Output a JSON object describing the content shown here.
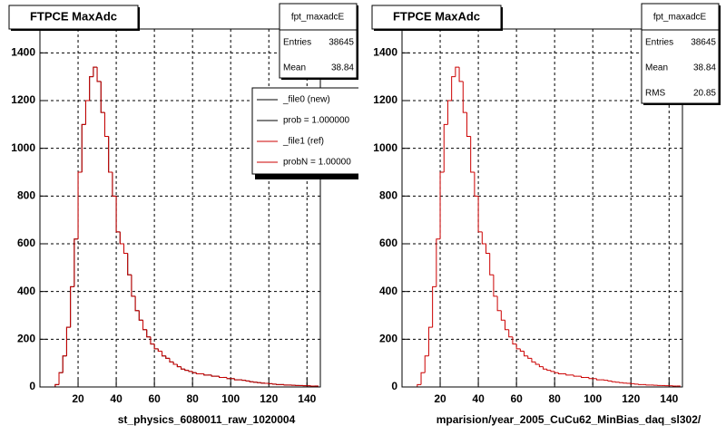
{
  "chart_data": [
    {
      "type": "histogram",
      "title": "FTPCE MaxAdc",
      "xlabel": "st_physics_6080011_raw_1020004",
      "bins": [
        0,
        2,
        4,
        6,
        8,
        10,
        12,
        14,
        16,
        18,
        20,
        22,
        24,
        26,
        28,
        30,
        32,
        34,
        36,
        38,
        40,
        42,
        44,
        46,
        48,
        50,
        52,
        54,
        56,
        58,
        60,
        62,
        64,
        66,
        68,
        70,
        72,
        74,
        76,
        78,
        80,
        82,
        84,
        86,
        88,
        90,
        92,
        94,
        96,
        98,
        100,
        102,
        104,
        106,
        108,
        110,
        112,
        114,
        116,
        118,
        120,
        122,
        124,
        126,
        128,
        130,
        132,
        134,
        136,
        138,
        140,
        142,
        144,
        146
      ],
      "series": [
        {
          "name": "_file0 (new)",
          "color": "#000000",
          "values": [
            0,
            0,
            0,
            0,
            10,
            60,
            130,
            250,
            420,
            620,
            900,
            1100,
            1200,
            1300,
            1340,
            1280,
            1150,
            1050,
            900,
            800,
            650,
            600,
            560,
            470,
            380,
            320,
            280,
            240,
            210,
            180,
            160,
            150,
            130,
            120,
            105,
            95,
            85,
            75,
            70,
            65,
            60,
            55,
            55,
            50,
            50,
            45,
            45,
            40,
            40,
            35,
            35,
            30,
            30,
            28,
            25,
            22,
            20,
            18,
            16,
            15,
            14,
            12,
            10,
            10,
            8,
            8,
            7,
            6,
            6,
            5,
            5,
            4,
            4
          ]
        },
        {
          "name": "_file1 (ref)",
          "color": "#cc0000",
          "values": [
            0,
            0,
            0,
            0,
            10,
            60,
            130,
            250,
            420,
            620,
            900,
            1100,
            1200,
            1300,
            1340,
            1280,
            1150,
            1050,
            900,
            800,
            650,
            600,
            560,
            470,
            380,
            320,
            280,
            240,
            210,
            180,
            160,
            150,
            130,
            120,
            105,
            95,
            85,
            75,
            70,
            65,
            60,
            55,
            55,
            50,
            50,
            45,
            45,
            40,
            40,
            35,
            35,
            30,
            30,
            28,
            25,
            22,
            20,
            18,
            16,
            15,
            14,
            12,
            10,
            10,
            8,
            8,
            7,
            6,
            6,
            5,
            5,
            4,
            4
          ]
        }
      ],
      "legend_notes": [
        "prob = 1.000000",
        "probN = 1.00000"
      ],
      "stats": {
        "title": "fpt_maxadcE",
        "rows": [
          {
            "label": "Entries",
            "value": 38645
          },
          {
            "label": "Mean",
            "value": 38.84
          }
        ]
      },
      "xlim": [
        0,
        147
      ],
      "ylim": [
        0,
        1500
      ],
      "xticks": [
        20,
        40,
        60,
        80,
        100,
        120,
        140
      ],
      "yticks": [
        0,
        200,
        400,
        600,
        800,
        1000,
        1200,
        1400
      ],
      "grid": true
    },
    {
      "type": "histogram",
      "title": "FTPCE MaxAdc",
      "xlabel": "mparision/year_2005_CuCu62_MinBias_daq_sl302/",
      "bins": [
        0,
        2,
        4,
        6,
        8,
        10,
        12,
        14,
        16,
        18,
        20,
        22,
        24,
        26,
        28,
        30,
        32,
        34,
        36,
        38,
        40,
        42,
        44,
        46,
        48,
        50,
        52,
        54,
        56,
        58,
        60,
        62,
        64,
        66,
        68,
        70,
        72,
        74,
        76,
        78,
        80,
        82,
        84,
        86,
        88,
        90,
        92,
        94,
        96,
        98,
        100,
        102,
        104,
        106,
        108,
        110,
        112,
        114,
        116,
        118,
        120,
        122,
        124,
        126,
        128,
        130,
        132,
        134,
        136,
        138,
        140,
        142,
        144,
        146
      ],
      "series": [
        {
          "color": "#cc0000",
          "values": [
            0,
            0,
            0,
            0,
            10,
            60,
            130,
            250,
            420,
            620,
            900,
            1100,
            1200,
            1300,
            1340,
            1280,
            1150,
            1050,
            900,
            800,
            650,
            600,
            560,
            470,
            380,
            320,
            280,
            240,
            210,
            180,
            160,
            150,
            130,
            120,
            105,
            95,
            85,
            75,
            70,
            65,
            60,
            55,
            55,
            50,
            50,
            45,
            45,
            40,
            40,
            35,
            35,
            30,
            30,
            28,
            25,
            22,
            20,
            18,
            16,
            15,
            14,
            12,
            10,
            10,
            8,
            8,
            7,
            6,
            6,
            5,
            5,
            4,
            4
          ]
        }
      ],
      "stats": {
        "title": "fpt_maxadcE",
        "rows": [
          {
            "label": "Entries",
            "value": 38645
          },
          {
            "label": "Mean",
            "value": 38.84
          },
          {
            "label": "RMS",
            "value": 20.85
          }
        ]
      },
      "xlim": [
        0,
        147
      ],
      "ylim": [
        0,
        1500
      ],
      "xticks": [
        20,
        40,
        60,
        80,
        100,
        120,
        140
      ],
      "yticks": [
        0,
        200,
        400,
        600,
        800,
        1000,
        1200,
        1400
      ],
      "grid": true
    }
  ]
}
